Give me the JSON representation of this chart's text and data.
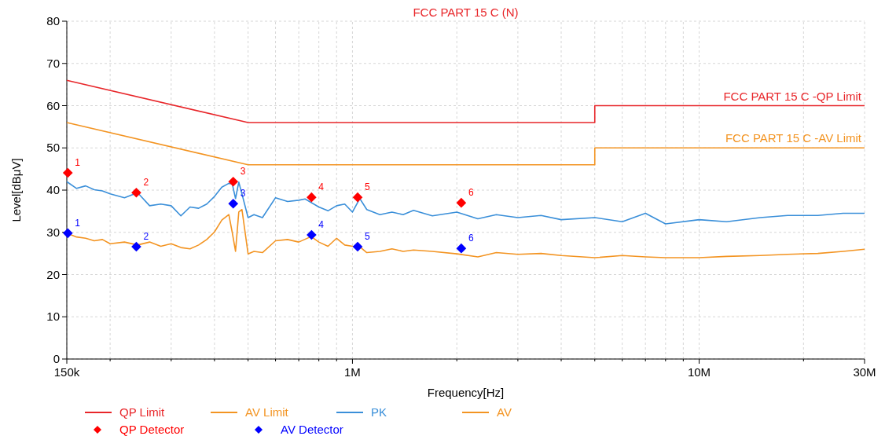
{
  "chart_data": {
    "type": "line",
    "title": "FCC PART 15 C (N)",
    "xlabel": "Frequency[Hz]",
    "ylabel": "Level[dBμV]",
    "log": "x",
    "grid": true,
    "legend": "bottom",
    "line_style": "solid",
    "xlim": [
      150000,
      30000000
    ],
    "ylim": [
      0,
      80
    ],
    "xticks": [
      {
        "value": 150000,
        "label": "150k"
      },
      {
        "value": 200000,
        "label": null
      },
      {
        "value": 300000,
        "label": null
      },
      {
        "value": 400000,
        "label": null
      },
      {
        "value": 500000,
        "label": null
      },
      {
        "value": 600000,
        "label": null
      },
      {
        "value": 700000,
        "label": null
      },
      {
        "value": 800000,
        "label": null
      },
      {
        "value": 900000,
        "label": null
      },
      {
        "value": 1000000,
        "label": "1M"
      },
      {
        "value": 2000000,
        "label": null
      },
      {
        "value": 3000000,
        "label": null
      },
      {
        "value": 4000000,
        "label": null
      },
      {
        "value": 5000000,
        "label": null
      },
      {
        "value": 6000000,
        "label": null
      },
      {
        "value": 7000000,
        "label": null
      },
      {
        "value": 8000000,
        "label": null
      },
      {
        "value": 9000000,
        "label": null
      },
      {
        "value": 10000000,
        "label": "10M"
      },
      {
        "value": 20000000,
        "label": null
      },
      {
        "value": 30000000,
        "label": "30M"
      }
    ],
    "yticks": [
      0,
      10,
      20,
      30,
      40,
      50,
      60,
      70,
      80
    ],
    "annotations": [
      {
        "text": "FCC PART 15 C -QP Limit",
        "x": 30000000,
        "y": 60
      },
      {
        "text": "FCC PART 15 C -AV Limit",
        "x": 30000000,
        "y": 50
      },
      {
        "text": "1",
        "x": 151000,
        "y": 44.1
      },
      {
        "text": "2",
        "x": 238000,
        "y": 39.4
      },
      {
        "text": "3",
        "x": 453000,
        "y": 42
      },
      {
        "text": "4",
        "x": 762000,
        "y": 38.3
      },
      {
        "text": "5",
        "x": 1035000,
        "y": 38.3
      },
      {
        "text": "6",
        "x": 2060000,
        "y": 37
      },
      {
        "text": "1",
        "x": 151000,
        "y": 29.8
      },
      {
        "text": "2",
        "x": 238000,
        "y": 26.6
      },
      {
        "text": "3",
        "x": 453000,
        "y": 36.8
      },
      {
        "text": "4",
        "x": 762000,
        "y": 29.4
      },
      {
        "text": "5",
        "x": 1035000,
        "y": 26.6
      },
      {
        "text": "6",
        "x": 2060000,
        "y": 26.2
      }
    ],
    "series": [
      {
        "name": "QP Limit",
        "color": "#e8262a",
        "x": [
          150000,
          500000,
          5000000,
          5000000,
          30000000
        ],
        "values": [
          66,
          56,
          56,
          60,
          60
        ]
      },
      {
        "name": "AV Limit",
        "color": "#f39422",
        "x": [
          150000,
          500000,
          5000000,
          5000000,
          30000000
        ],
        "values": [
          56,
          46,
          46,
          50,
          50
        ]
      },
      {
        "name": "PK",
        "color": "#3a8fd9",
        "x": [
          150000,
          160000,
          170000,
          180000,
          190000,
          200000,
          220000,
          240000,
          260000,
          280000,
          300000,
          320000,
          340000,
          360000,
          380000,
          400000,
          420000,
          440000,
          450000,
          460000,
          470000,
          480000,
          500000,
          520000,
          550000,
          600000,
          650000,
          700000,
          730000,
          800000,
          850000,
          900000,
          950000,
          1000000,
          1050000,
          1100000,
          1200000,
          1300000,
          1400000,
          1500000,
          1700000,
          2000000,
          2300000,
          2600000,
          3000000,
          3500000,
          4000000,
          5000000,
          6000000,
          7000000,
          8000000,
          10000000,
          12000000,
          15000000,
          18000000,
          22000000,
          26000000,
          30000000
        ],
        "values": [
          42,
          40.4,
          41,
          40.1,
          39.8,
          39.1,
          38.2,
          39.4,
          36.3,
          36.7,
          36.3,
          33.9,
          36,
          35.7,
          36.7,
          38.5,
          40.7,
          41.6,
          41.5,
          38,
          41.9,
          39.1,
          33.5,
          34.2,
          33.5,
          38.2,
          37.3,
          37.6,
          37.9,
          36,
          35.1,
          36.3,
          36.7,
          34.8,
          38,
          35.4,
          34.2,
          34.8,
          34.2,
          35.2,
          33.9,
          34.8,
          33.2,
          34.2,
          33.5,
          34,
          33,
          33.5,
          32.5,
          34.5,
          32,
          33,
          32.5,
          33.5,
          34,
          34,
          34.5,
          34.5
        ]
      },
      {
        "name": "AV",
        "color": "#f39422",
        "x": [
          150000,
          160000,
          170000,
          180000,
          190000,
          200000,
          220000,
          240000,
          260000,
          280000,
          300000,
          320000,
          340000,
          360000,
          380000,
          400000,
          420000,
          440000,
          450000,
          460000,
          470000,
          480000,
          500000,
          520000,
          550000,
          600000,
          650000,
          700000,
          760000,
          800000,
          850000,
          900000,
          950000,
          1000000,
          1050000,
          1100000,
          1200000,
          1300000,
          1400000,
          1500000,
          1700000,
          2000000,
          2300000,
          2600000,
          3000000,
          3500000,
          4000000,
          5000000,
          6000000,
          7000000,
          8000000,
          10000000,
          12000000,
          15000000,
          18000000,
          22000000,
          26000000,
          30000000
        ],
        "values": [
          29.8,
          28.9,
          28.6,
          28,
          28.3,
          27.3,
          27.7,
          27,
          27.7,
          26.7,
          27.3,
          26.4,
          26.1,
          27,
          28.3,
          30.1,
          32.9,
          34.2,
          30,
          25.5,
          34.8,
          35.4,
          24.9,
          25.5,
          25.2,
          28,
          28.3,
          27.7,
          29,
          27.7,
          26.7,
          28.6,
          27,
          26.7,
          26.6,
          25.2,
          25.5,
          26.1,
          25.5,
          25.8,
          25.5,
          24.9,
          24.2,
          25.2,
          24.8,
          25,
          24.5,
          24,
          24.5,
          24.2,
          24,
          24,
          24.3,
          24.5,
          24.8,
          25,
          25.5,
          26
        ]
      },
      {
        "name": "QP Detector",
        "type": "scatter",
        "marker": "diamond",
        "color": "#ff0000",
        "x": [
          151000,
          238000,
          453000,
          762000,
          1035000,
          2060000
        ],
        "values": [
          44.1,
          39.4,
          42,
          38.3,
          38.3,
          37
        ]
      },
      {
        "name": "AV Detector",
        "type": "scatter",
        "marker": "diamond",
        "color": "#0000ff",
        "x": [
          151000,
          238000,
          453000,
          762000,
          1035000,
          2060000
        ],
        "values": [
          29.8,
          26.6,
          36.8,
          29.4,
          26.6,
          26.2
        ]
      }
    ]
  }
}
